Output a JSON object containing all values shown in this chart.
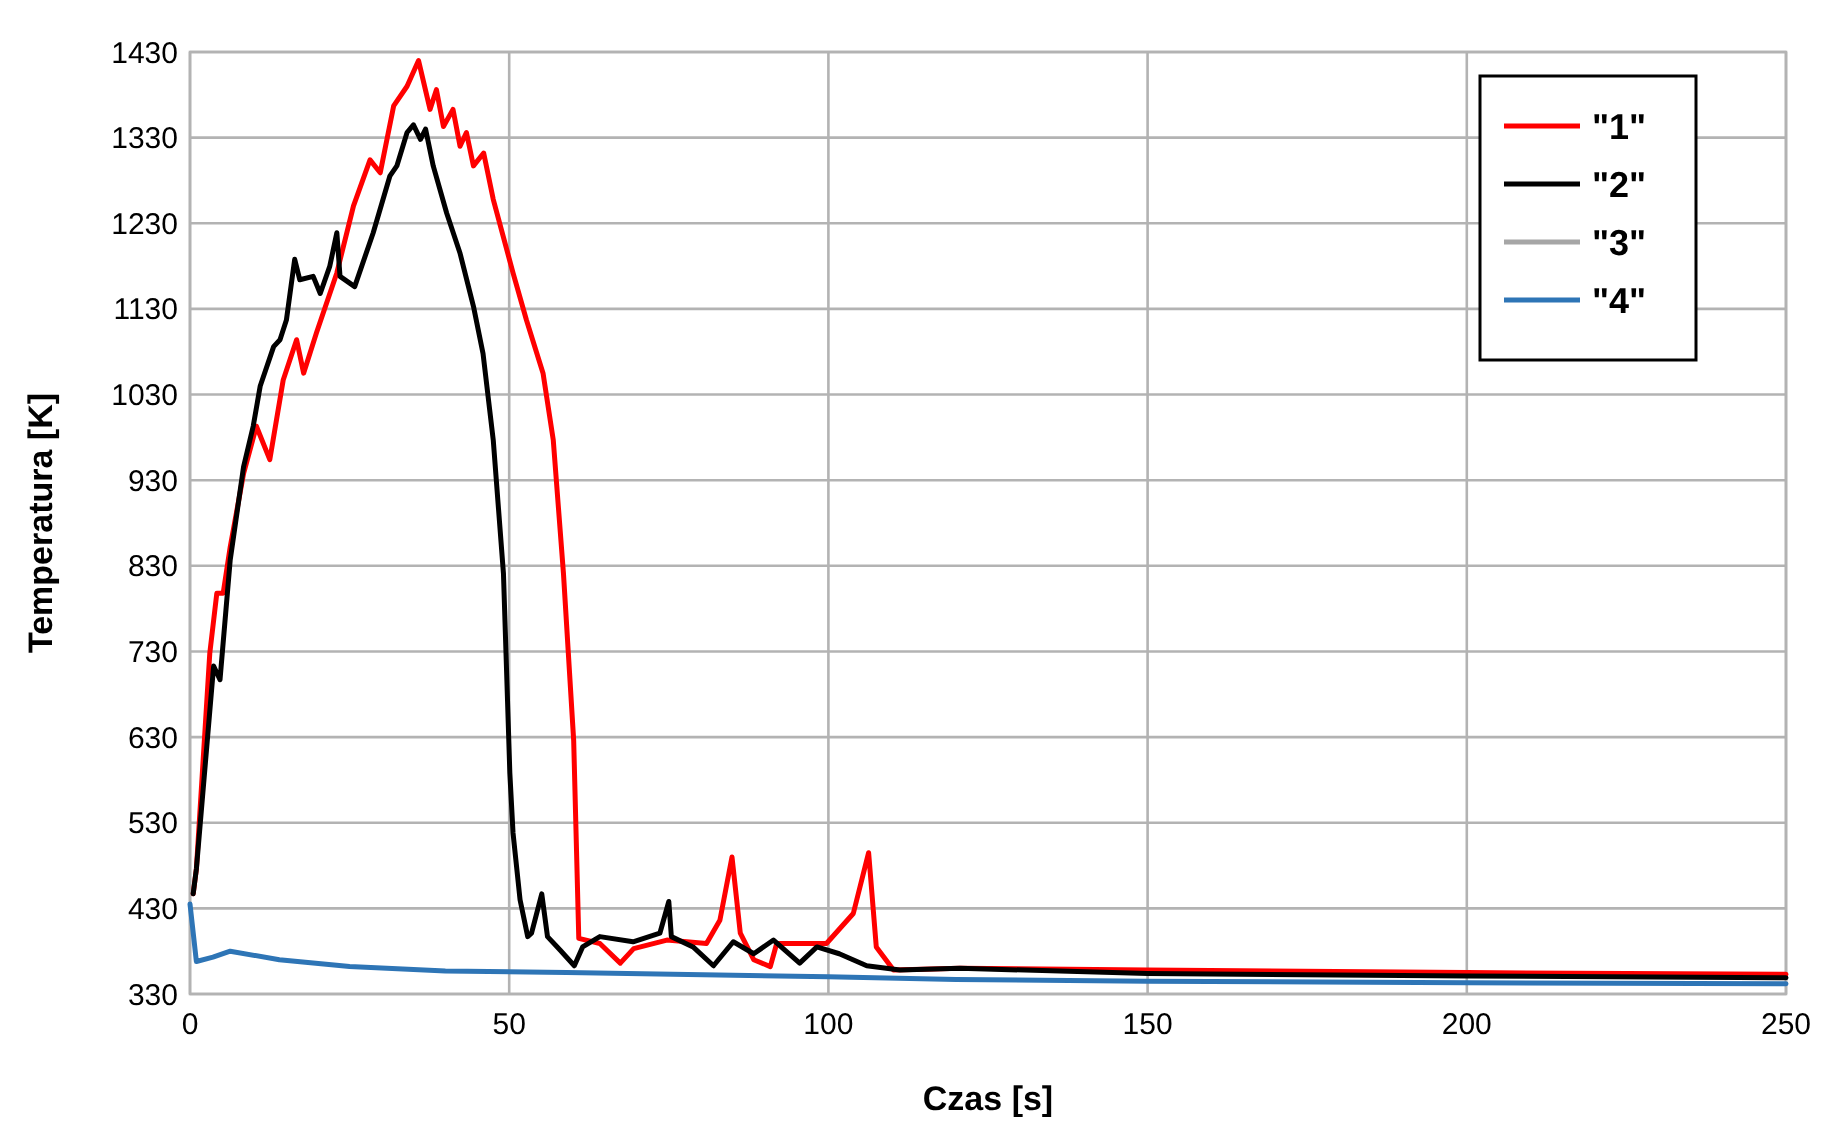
{
  "chart_data": {
    "type": "line",
    "xlabel": "Czas [s]",
    "ylabel": "Temperatura [K]",
    "xlim": [
      0,
      250
    ],
    "xticks": [
      0,
      50,
      100,
      150,
      200,
      250
    ],
    "ylim": [
      330,
      1430
    ],
    "yticks": [
      330,
      430,
      530,
      630,
      730,
      830,
      930,
      1030,
      1130,
      1230,
      1330,
      1430
    ],
    "grid": true,
    "legend": "top right",
    "line_style": "solid",
    "marker": "none",
    "series": [
      {
        "name": "\"1\"",
        "color": "#ff0000",
        "x": [
          0.5,
          1,
          3.1,
          4.2,
          5.2,
          6.3,
          8.4,
          10.4,
          12.5,
          14.6,
          16.7,
          17.8,
          19.8,
          23,
          25.6,
          28.2,
          29.8,
          31.9,
          34,
          35.8,
          37.6,
          38.6,
          39.7,
          41.2,
          42.3,
          43.3,
          44.4,
          46,
          47.5,
          50.6,
          52.7,
          55.3,
          56.9,
          58.5,
          60.1,
          60.9,
          64.2,
          67.4,
          69.5,
          74.7,
          80.9,
          83,
          84.9,
          86.2,
          88.3,
          90.9,
          91.9,
          99.7,
          103.9,
          106.3,
          107.5,
          110.2,
          120.6,
          150,
          200,
          250
        ],
        "values": [
          447,
          476,
          728,
          798,
          798,
          852,
          938,
          993,
          954,
          1047,
          1094,
          1055,
          1102,
          1172,
          1250,
          1304,
          1289,
          1367,
          1390,
          1420,
          1363,
          1386,
          1343,
          1363,
          1320,
          1336,
          1297,
          1312,
          1258,
          1172,
          1117,
          1055,
          977,
          821,
          626,
          395,
          389,
          366,
          383,
          393,
          389,
          416,
          490,
          401,
          370,
          362,
          389,
          389,
          424,
          495,
          385,
          358,
          360,
          358,
          355,
          353
        ]
      },
      {
        "name": "\"2\"",
        "color": "#000000",
        "x": [
          0.5,
          1,
          3.7,
          4.7,
          6.3,
          8.4,
          9.9,
          11,
          13.1,
          14.1,
          15.1,
          16.4,
          17.2,
          19.3,
          20.4,
          21.9,
          23,
          23.5,
          25.8,
          28.7,
          31.3,
          32.4,
          34,
          35,
          36.1,
          36.9,
          38.1,
          40.2,
          42.3,
          44.4,
          45.9,
          47.5,
          49.1,
          50.1,
          50.6,
          51.7,
          52.9,
          53.5,
          55.1,
          56,
          58,
          60.2,
          61.5,
          64.2,
          69.4,
          73.6,
          75,
          75.4,
          78.8,
          82,
          85.1,
          88.3,
          91.4,
          95.5,
          98.2,
          101.7,
          106,
          111.2,
          120.6,
          150,
          200,
          250
        ],
        "values": [
          447,
          476,
          713,
          697,
          837,
          946,
          993,
          1040,
          1086,
          1094,
          1117,
          1188,
          1164,
          1168,
          1148,
          1180,
          1219,
          1168,
          1156,
          1219,
          1285,
          1297,
          1336,
          1345,
          1328,
          1340,
          1297,
          1242,
          1195,
          1133,
          1078,
          977,
          821,
          588,
          518,
          440,
          397,
          401,
          447,
          397,
          381,
          363,
          385,
          397,
          391,
          401,
          438,
          397,
          385,
          363,
          391,
          377,
          393,
          366,
          385,
          377,
          363,
          358,
          360,
          354,
          351,
          349
        ]
      },
      {
        "name": "\"3\"",
        "color": "#a6a6a6"
      },
      {
        "name": "\"4\"",
        "color": "#2e75b6",
        "x": [
          0,
          1,
          3.6,
          6.3,
          14,
          25,
          40,
          59,
          100,
          120,
          150,
          200,
          250
        ],
        "values": [
          435,
          368,
          373,
          380,
          370,
          362,
          357,
          355,
          350,
          347,
          345,
          343,
          342
        ]
      }
    ]
  }
}
